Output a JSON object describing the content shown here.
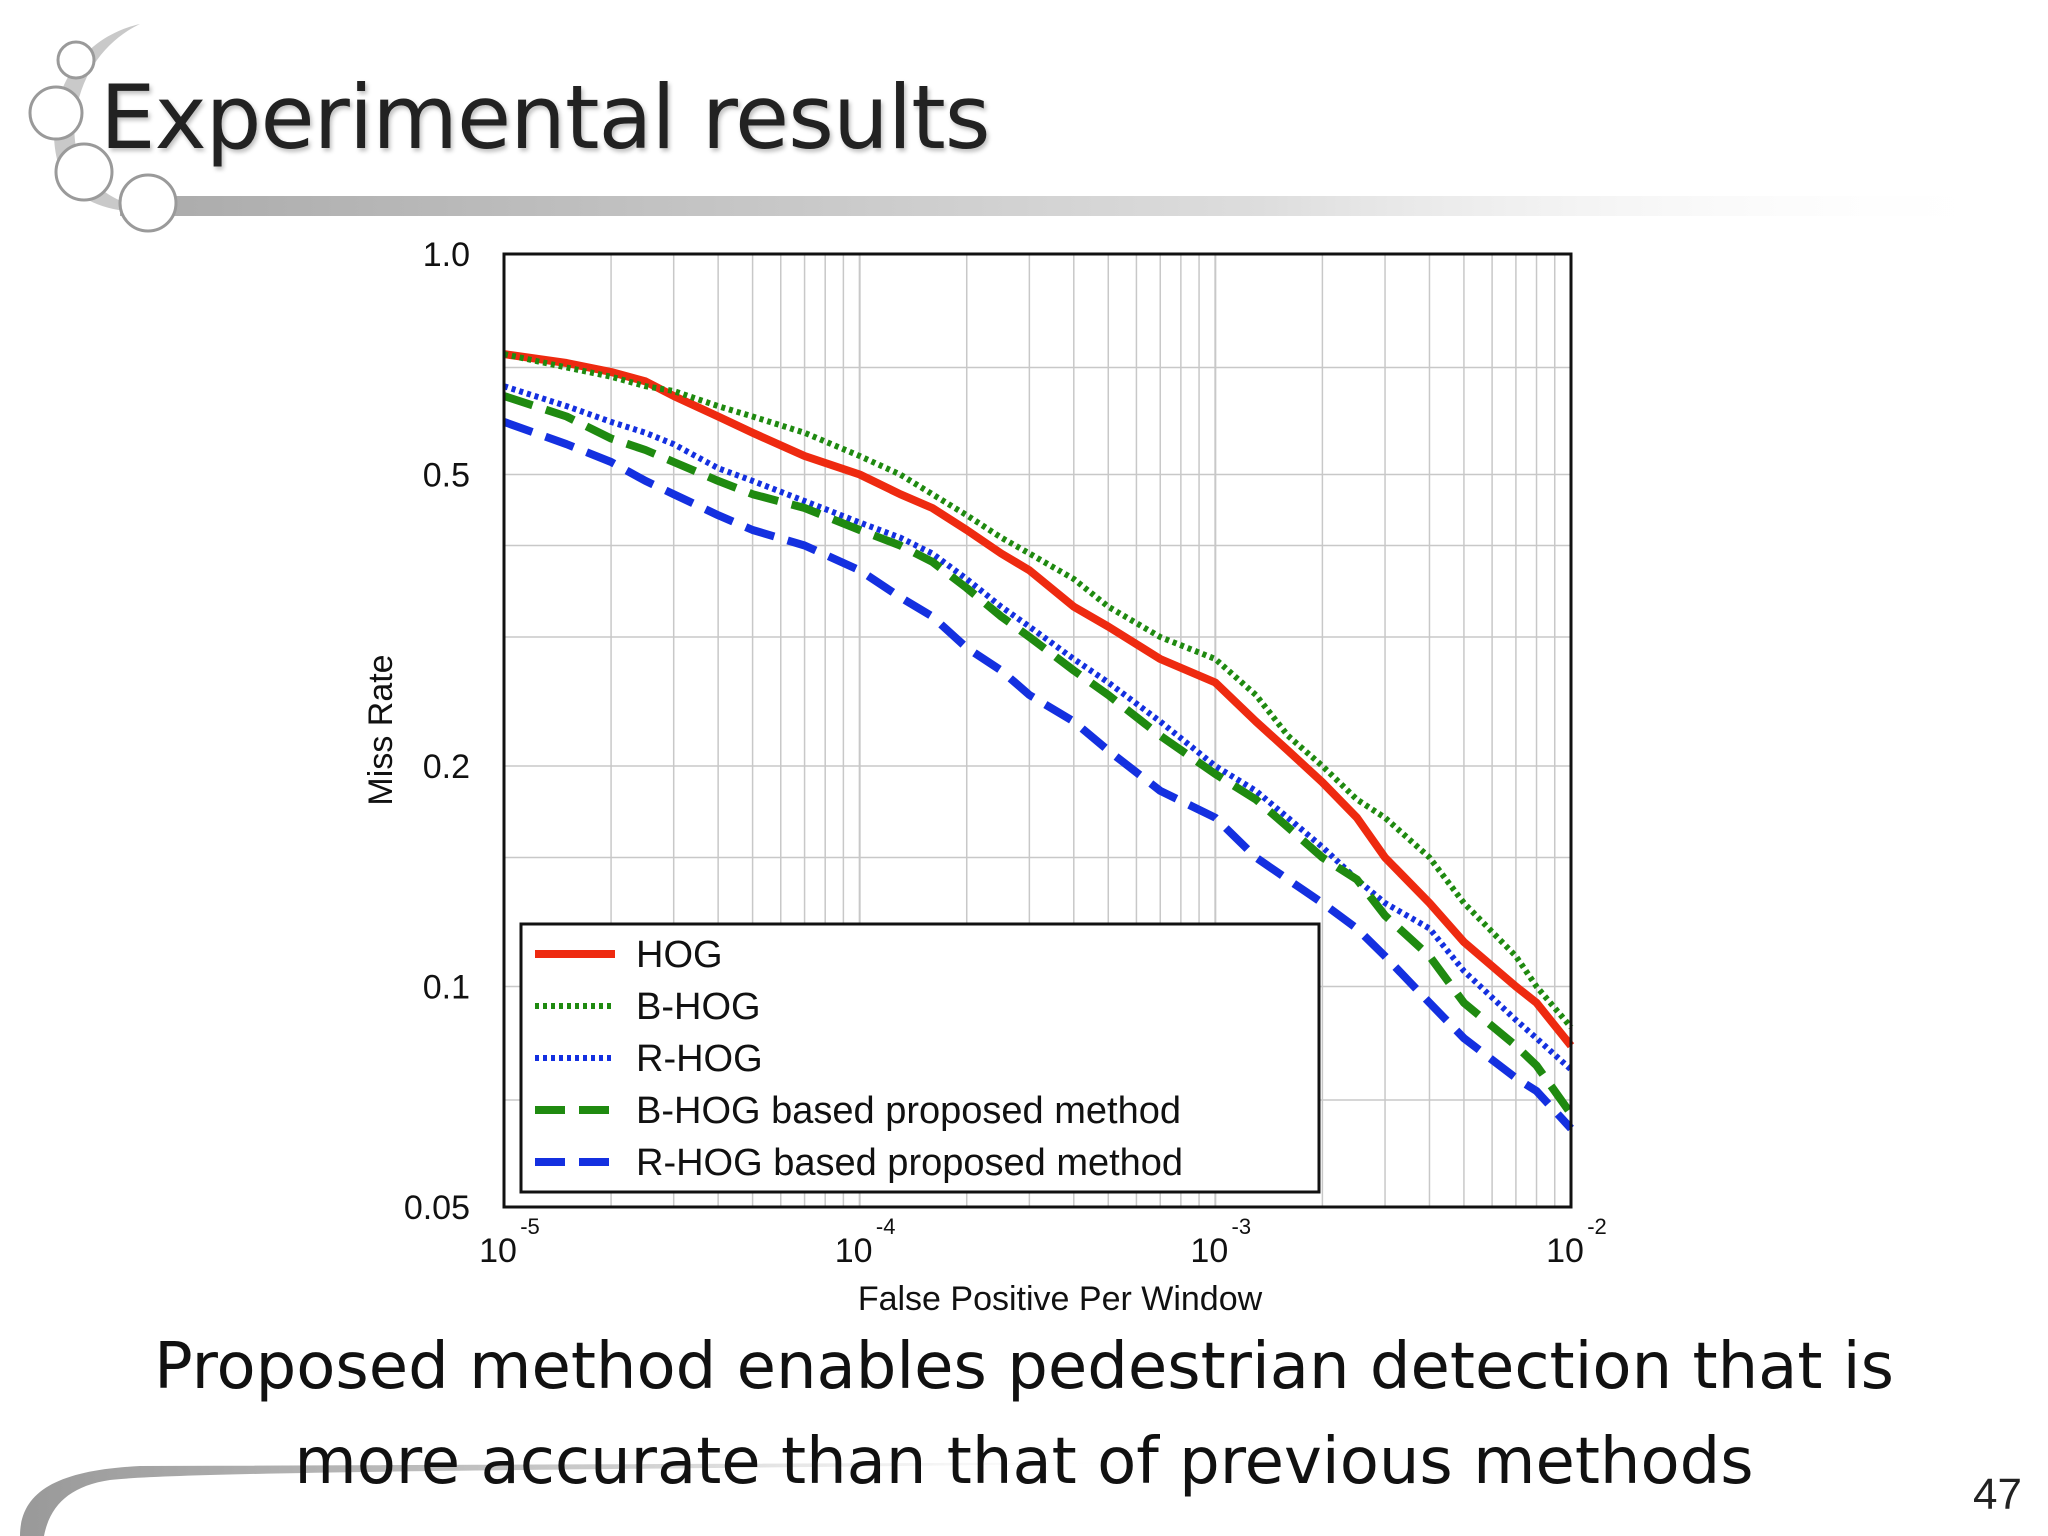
{
  "slide": {
    "title": "Experimental results",
    "caption_lines": [
      "Proposed method enables pedestrian detection that is",
      "more accurate than that of previous methods"
    ],
    "page_number": "47"
  },
  "icons": {
    "decoration": "bubbles-swoosh-decoration"
  },
  "chart_data": {
    "type": "line",
    "title": "",
    "xlabel": "False Positive Per Window",
    "ylabel": "Miss Rate",
    "xscale": "log",
    "yscale": "log",
    "xlim": [
      1e-05,
      0.01
    ],
    "ylim": [
      0.05,
      1.0
    ],
    "x_ticks": [
      {
        "value": 1e-05,
        "base": "10",
        "exp": "-5"
      },
      {
        "value": 0.0001,
        "base": "10",
        "exp": "-4"
      },
      {
        "value": 0.001,
        "base": "10",
        "exp": "-3"
      },
      {
        "value": 0.01,
        "base": "10",
        "exp": "-2"
      }
    ],
    "y_ticks": [
      {
        "value": 1.0,
        "label": "1.0"
      },
      {
        "value": 0.5,
        "label": "0.5"
      },
      {
        "value": 0.2,
        "label": "0.2"
      },
      {
        "value": 0.1,
        "label": "0.1"
      },
      {
        "value": 0.05,
        "label": "0.05"
      }
    ],
    "grid": true,
    "legend_position": "bottom-left",
    "series": [
      {
        "name": "HOG",
        "color": "#ee2a10",
        "style": "solid",
        "x": [
          1e-05,
          1.5e-05,
          2e-05,
          2.5e-05,
          3e-05,
          4e-05,
          5e-05,
          7e-05,
          0.0001,
          0.00013,
          0.00016,
          0.0002,
          0.00025,
          0.0003,
          0.0004,
          0.0005,
          0.0007,
          0.001,
          0.0013,
          0.0016,
          0.002,
          0.0025,
          0.003,
          0.004,
          0.005,
          0.007,
          0.008,
          0.01
        ],
        "y": [
          0.73,
          0.71,
          0.69,
          0.67,
          0.64,
          0.6,
          0.57,
          0.53,
          0.5,
          0.47,
          0.45,
          0.42,
          0.39,
          0.37,
          0.33,
          0.31,
          0.28,
          0.26,
          0.23,
          0.21,
          0.19,
          0.17,
          0.15,
          0.13,
          0.115,
          0.1,
          0.095,
          0.083
        ]
      },
      {
        "name": "B-HOG",
        "color": "#1f8a10",
        "style": "dotted",
        "x": [
          1e-05,
          1.5e-05,
          2e-05,
          2.5e-05,
          3e-05,
          4e-05,
          5e-05,
          7e-05,
          0.0001,
          0.00013,
          0.00016,
          0.0002,
          0.00025,
          0.0003,
          0.0004,
          0.0005,
          0.0007,
          0.001,
          0.0013,
          0.0016,
          0.002,
          0.0025,
          0.003,
          0.004,
          0.005,
          0.007,
          0.008,
          0.01
        ],
        "y": [
          0.73,
          0.7,
          0.68,
          0.66,
          0.65,
          0.62,
          0.6,
          0.57,
          0.53,
          0.5,
          0.47,
          0.44,
          0.41,
          0.39,
          0.36,
          0.33,
          0.3,
          0.28,
          0.25,
          0.22,
          0.2,
          0.18,
          0.17,
          0.15,
          0.13,
          0.11,
          0.1,
          0.088
        ]
      },
      {
        "name": "R-HOG",
        "color": "#1430e0",
        "style": "dotted",
        "x": [
          1e-05,
          1.5e-05,
          2e-05,
          2.5e-05,
          3e-05,
          4e-05,
          5e-05,
          7e-05,
          0.0001,
          0.00013,
          0.00016,
          0.0002,
          0.00025,
          0.0003,
          0.0004,
          0.0005,
          0.0007,
          0.001,
          0.0013,
          0.0016,
          0.002,
          0.0025,
          0.003,
          0.004,
          0.005,
          0.007,
          0.008,
          0.01
        ],
        "y": [
          0.66,
          0.62,
          0.59,
          0.57,
          0.55,
          0.51,
          0.49,
          0.46,
          0.43,
          0.41,
          0.39,
          0.36,
          0.33,
          0.31,
          0.28,
          0.26,
          0.23,
          0.2,
          0.185,
          0.17,
          0.155,
          0.14,
          0.13,
          0.12,
          0.105,
          0.09,
          0.085,
          0.077
        ]
      },
      {
        "name": "B-HOG based proposed method",
        "color": "#1f8a10",
        "style": "dashed",
        "x": [
          1e-05,
          1.5e-05,
          2e-05,
          2.5e-05,
          3e-05,
          4e-05,
          5e-05,
          7e-05,
          0.0001,
          0.00013,
          0.00016,
          0.0002,
          0.00025,
          0.0003,
          0.0004,
          0.0005,
          0.0007,
          0.001,
          0.0013,
          0.0016,
          0.002,
          0.0025,
          0.003,
          0.004,
          0.005,
          0.007,
          0.008,
          0.01
        ],
        "y": [
          0.64,
          0.6,
          0.56,
          0.54,
          0.52,
          0.49,
          0.47,
          0.45,
          0.42,
          0.4,
          0.38,
          0.35,
          0.32,
          0.3,
          0.27,
          0.25,
          0.22,
          0.195,
          0.18,
          0.165,
          0.15,
          0.14,
          0.125,
          0.11,
          0.095,
          0.083,
          0.078,
          0.067
        ]
      },
      {
        "name": "R-HOG based proposed method",
        "color": "#1430e0",
        "style": "dashed",
        "x": [
          1e-05,
          1.5e-05,
          2e-05,
          2.5e-05,
          3e-05,
          4e-05,
          5e-05,
          7e-05,
          0.0001,
          0.00013,
          0.00016,
          0.0002,
          0.00025,
          0.0003,
          0.0004,
          0.0005,
          0.0007,
          0.001,
          0.0013,
          0.0016,
          0.002,
          0.0025,
          0.003,
          0.004,
          0.005,
          0.007,
          0.008,
          0.01
        ],
        "y": [
          0.59,
          0.55,
          0.52,
          0.49,
          0.47,
          0.44,
          0.42,
          0.4,
          0.37,
          0.34,
          0.32,
          0.29,
          0.27,
          0.25,
          0.23,
          0.21,
          0.185,
          0.17,
          0.15,
          0.14,
          0.13,
          0.12,
          0.11,
          0.095,
          0.085,
          0.075,
          0.072,
          0.064
        ]
      }
    ]
  }
}
